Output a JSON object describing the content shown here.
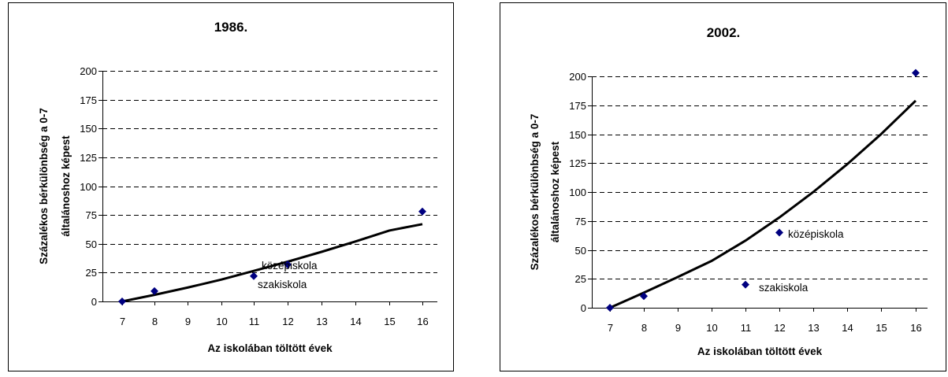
{
  "chart_data": [
    {
      "type": "scatter",
      "title": "1986.",
      "xlabel": "Az iskolában töltött évek",
      "ylabel": [
        "Százalékos bérkülönbség a 0-7",
        "általánoshoz képest"
      ],
      "xticks": [
        7,
        8,
        9,
        10,
        11,
        12,
        13,
        14,
        15,
        16
      ],
      "yticks": [
        0,
        25,
        50,
        75,
        100,
        125,
        150,
        175,
        200
      ],
      "ylim": [
        0,
        200
      ],
      "grid": "horizontal dashed",
      "marker_color": "#000080",
      "points": [
        {
          "x": 7,
          "y": 0
        },
        {
          "x": 8,
          "y": 9
        },
        {
          "x": 11,
          "y": 22
        },
        {
          "x": 12,
          "y": 32
        },
        {
          "x": 16,
          "y": 78
        }
      ],
      "trendline": [
        {
          "x": 7,
          "y": 0
        },
        {
          "x": 8,
          "y": 5.7
        },
        {
          "x": 9,
          "y": 12
        },
        {
          "x": 10,
          "y": 19
        },
        {
          "x": 11,
          "y": 26.5
        },
        {
          "x": 12,
          "y": 34.5
        },
        {
          "x": 13,
          "y": 43
        },
        {
          "x": 14,
          "y": 52
        },
        {
          "x": 15,
          "y": 61.5
        },
        {
          "x": 16,
          "y": 67
        }
      ],
      "annotations": [
        {
          "text": "középiskola",
          "x": 12,
          "y": 32
        },
        {
          "text": "szakiskola",
          "x": 11,
          "y": 22
        }
      ]
    },
    {
      "type": "scatter",
      "title": "2002.",
      "xlabel": "Az iskolában töltött évek",
      "ylabel": [
        "Százalékos bérkülönbség a 0-7",
        "általánoshoz képest"
      ],
      "xticks": [
        7,
        8,
        9,
        10,
        11,
        12,
        13,
        14,
        15,
        16
      ],
      "yticks": [
        0,
        25,
        50,
        75,
        100,
        125,
        150,
        175,
        200
      ],
      "ylim": [
        0,
        200
      ],
      "grid": "horizontal dashed",
      "marker_color": "#000080",
      "points": [
        {
          "x": 7,
          "y": 0
        },
        {
          "x": 8,
          "y": 10
        },
        {
          "x": 11,
          "y": 20
        },
        {
          "x": 12,
          "y": 65
        },
        {
          "x": 16,
          "y": 203
        }
      ],
      "trendline": [
        {
          "x": 7,
          "y": 0
        },
        {
          "x": 8,
          "y": 13
        },
        {
          "x": 9,
          "y": 26.5
        },
        {
          "x": 10,
          "y": 40.5
        },
        {
          "x": 11,
          "y": 58
        },
        {
          "x": 12,
          "y": 78
        },
        {
          "x": 13,
          "y": 100
        },
        {
          "x": 14,
          "y": 124
        },
        {
          "x": 15,
          "y": 150
        },
        {
          "x": 16,
          "y": 179
        }
      ],
      "annotations": [
        {
          "text": "középiskola",
          "x": 12,
          "y": 65
        },
        {
          "text": "szakiskola",
          "x": 11,
          "y": 20
        }
      ]
    }
  ]
}
